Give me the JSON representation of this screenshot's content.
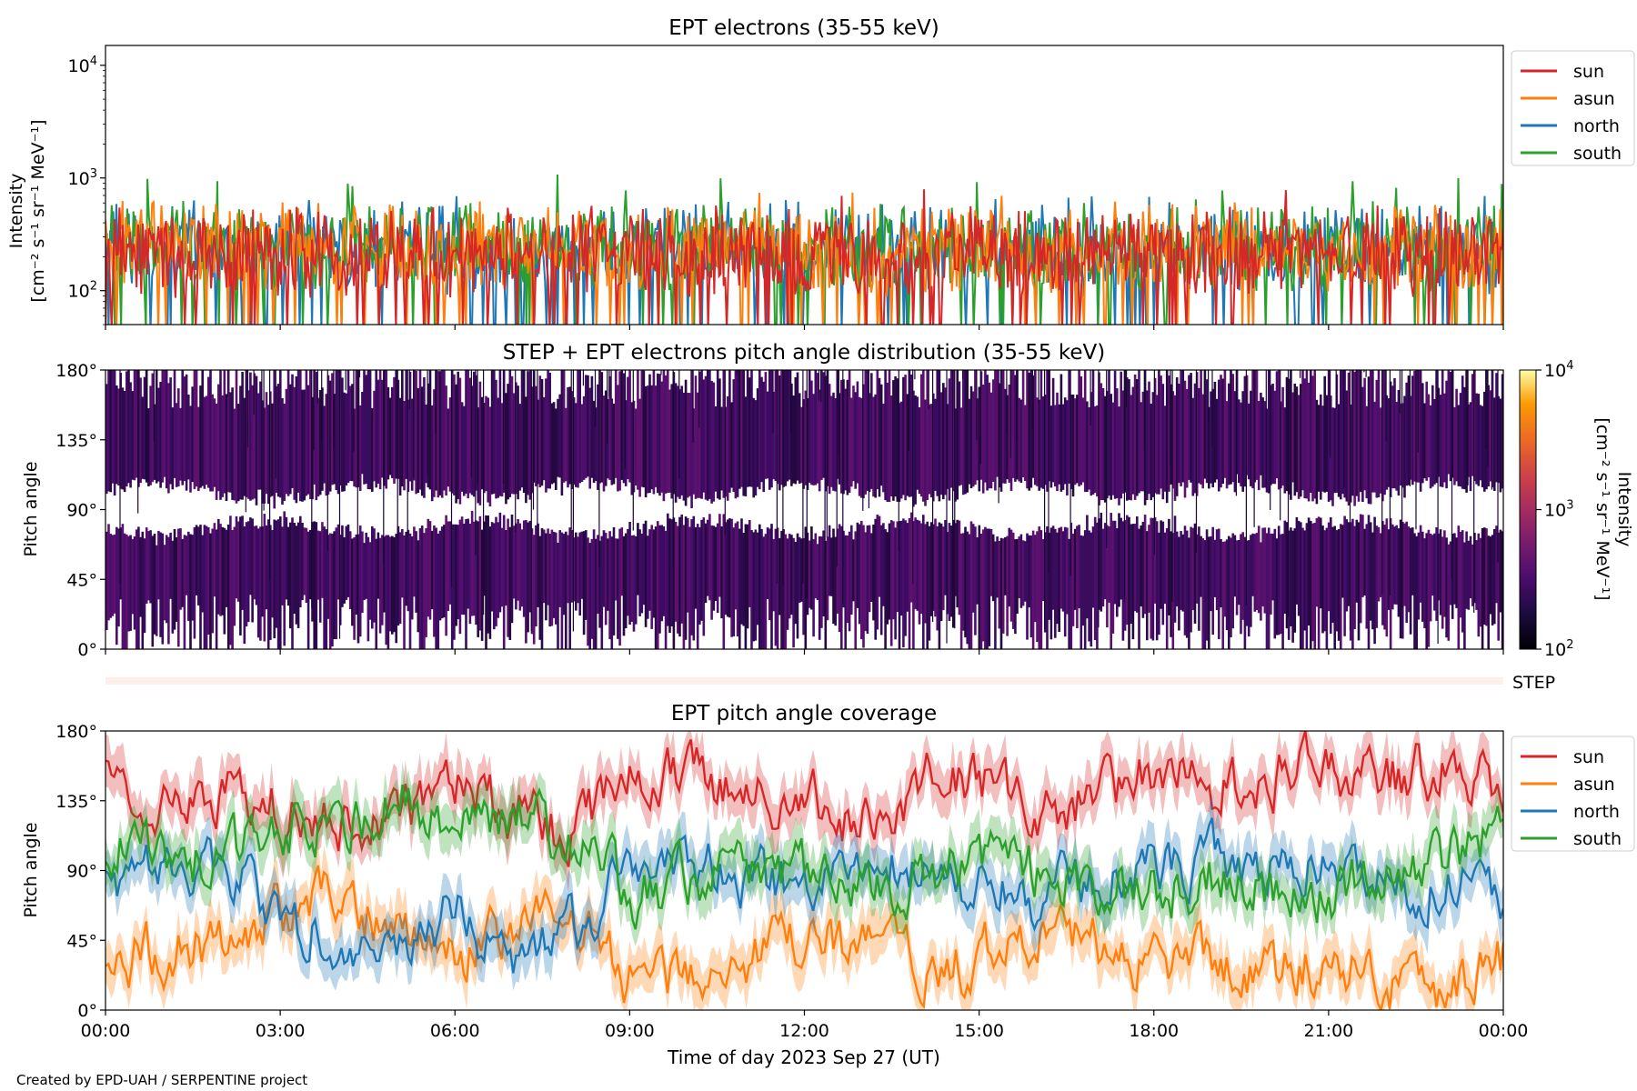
{
  "figure": {
    "footer": "Created by EPD-UAH / SERPENTINE project",
    "xlabel": "Time of day 2023 Sep 27 (UT)",
    "time_ticks": [
      "00:00",
      "03:00",
      "06:00",
      "09:00",
      "12:00",
      "15:00",
      "18:00",
      "21:00",
      "00:00"
    ],
    "colors": {
      "sun": "#d62728",
      "asun": "#ff7f0e",
      "north": "#1f77b4",
      "south": "#2ca02c"
    }
  },
  "chart_data": [
    {
      "type": "line",
      "title": "EPT electrons (35-55 keV)",
      "ylabel_line1": "Intensity",
      "ylabel_line2": "[cm⁻² s⁻¹ sr⁻¹ MeV⁻¹]",
      "yscale": "log",
      "ylim": [
        50,
        15000
      ],
      "y_ticks": [
        {
          "value": 100,
          "base": "10",
          "exp": "2"
        },
        {
          "value": 1000,
          "base": "10",
          "exp": "3"
        },
        {
          "value": 10000,
          "base": "10",
          "exp": "4"
        }
      ],
      "xlim_hours": [
        0,
        24
      ],
      "legend": [
        "sun",
        "asun",
        "north",
        "south"
      ],
      "legend_position": "outside-right",
      "series": [
        {
          "name": "sun",
          "color": "#d62728",
          "typical": 220,
          "range": [
            50,
            800
          ]
        },
        {
          "name": "asun",
          "color": "#ff7f0e",
          "typical": 240,
          "range": [
            50,
            750
          ]
        },
        {
          "name": "north",
          "color": "#1f77b4",
          "typical": 230,
          "range": [
            50,
            700
          ]
        },
        {
          "name": "south",
          "color": "#2ca02c",
          "typical": 250,
          "range": [
            50,
            1100
          ]
        }
      ]
    },
    {
      "type": "heatmap",
      "title": "STEP + EPT electrons pitch angle distribution (35-55 keV)",
      "ylabel": "Pitch angle",
      "ylim": [
        0,
        180
      ],
      "y_ticks": [
        "0°",
        "45°",
        "90°",
        "135°",
        "180°"
      ],
      "xlim_hours": [
        0,
        24
      ],
      "colorbar": {
        "scale": "log",
        "range": [
          100,
          10000
        ],
        "label_line1": "Intensity",
        "label_line2": "[cm⁻² s⁻¹ sr⁻¹ MeV⁻¹]",
        "ticks": [
          {
            "value": 100,
            "base": "10",
            "exp": "2"
          },
          {
            "value": 1000,
            "base": "10",
            "exp": "3"
          },
          {
            "value": 10000,
            "base": "10",
            "exp": "4"
          }
        ],
        "colormap": "inferno"
      },
      "typical_intensity": 250
    },
    {
      "type": "heatmap",
      "label": "STEP",
      "note": "empty strip, no data",
      "xlim_hours": [
        0,
        24
      ]
    },
    {
      "type": "line",
      "title": "EPT pitch angle coverage",
      "ylabel": "Pitch angle",
      "ylim": [
        0,
        180
      ],
      "y_ticks": [
        "0°",
        "45°",
        "90°",
        "135°",
        "180°"
      ],
      "xlim_hours": [
        0,
        24
      ],
      "legend": [
        "sun",
        "asun",
        "north",
        "south"
      ],
      "legend_position": "outside-right",
      "band": "shaded ± spread around each line",
      "series": [
        {
          "name": "sun",
          "color": "#d62728",
          "x": [
            0,
            1,
            2,
            3,
            4,
            5,
            6,
            7,
            8,
            9,
            10,
            11,
            12,
            13,
            14,
            15,
            16,
            17,
            18,
            19,
            20,
            21,
            22,
            23,
            24
          ],
          "y": [
            150,
            135,
            140,
            130,
            120,
            125,
            145,
            130,
            110,
            155,
            150,
            140,
            135,
            120,
            145,
            150,
            120,
            140,
            150,
            145,
            150,
            155,
            150,
            160,
            145
          ]
        },
        {
          "name": "asun",
          "color": "#ff7f0e",
          "x": [
            0,
            1,
            2,
            3,
            4,
            5,
            6,
            7,
            8,
            9,
            10,
            11,
            12,
            13,
            14,
            15,
            16,
            17,
            18,
            19,
            20,
            21,
            22,
            23,
            24
          ],
          "y": [
            30,
            40,
            45,
            60,
            70,
            55,
            35,
            50,
            65,
            20,
            25,
            30,
            45,
            40,
            25,
            30,
            55,
            40,
            30,
            35,
            25,
            30,
            20,
            15,
            35
          ]
        },
        {
          "name": "north",
          "color": "#1f77b4",
          "x": [
            0,
            1,
            2,
            3,
            4,
            5,
            6,
            7,
            8,
            9,
            10,
            11,
            12,
            13,
            14,
            15,
            16,
            17,
            18,
            19,
            20,
            21,
            22,
            23,
            24
          ],
          "y": [
            80,
            95,
            90,
            60,
            50,
            45,
            60,
            40,
            50,
            95,
            90,
            85,
            80,
            100,
            90,
            80,
            70,
            85,
            90,
            95,
            90,
            95,
            85,
            80,
            75
          ]
        },
        {
          "name": "south",
          "color": "#2ca02c",
          "x": [
            0,
            1,
            2,
            3,
            4,
            5,
            6,
            7,
            8,
            9,
            10,
            11,
            12,
            13,
            14,
            15,
            16,
            17,
            18,
            19,
            20,
            21,
            22,
            23,
            24
          ],
          "y": [
            110,
            100,
            95,
            120,
            115,
            140,
            120,
            130,
            110,
            75,
            80,
            95,
            90,
            75,
            80,
            100,
            90,
            80,
            75,
            85,
            80,
            75,
            90,
            100,
            110
          ]
        }
      ]
    }
  ]
}
